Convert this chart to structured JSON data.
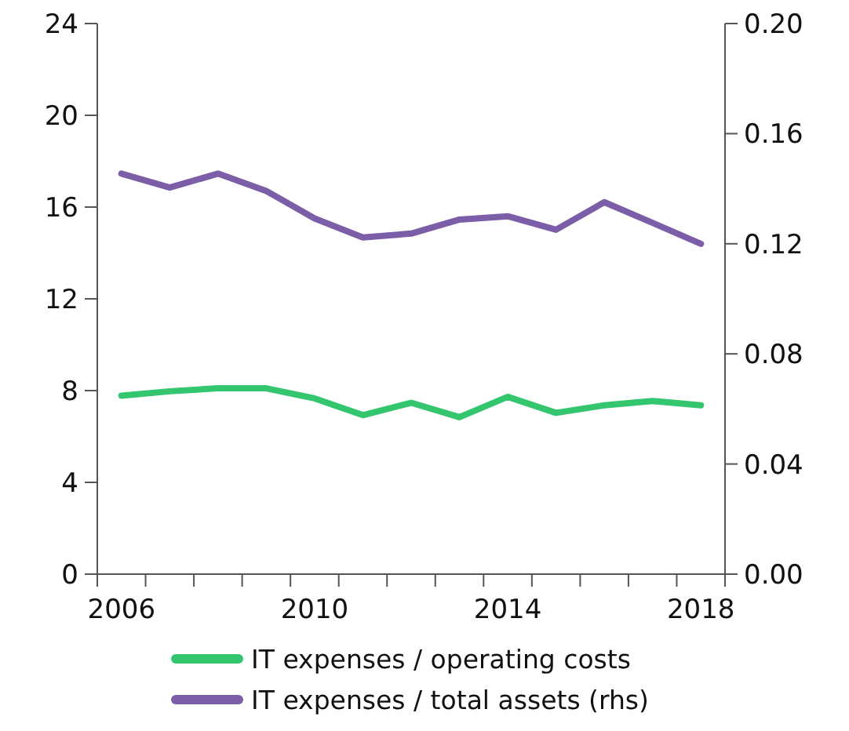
{
  "chart_data": {
    "type": "line",
    "categories": [
      "2006",
      null,
      null,
      null,
      "2010",
      null,
      null,
      null,
      "2014",
      null,
      null,
      null,
      "2018"
    ],
    "series": [
      {
        "name": "IT expenses / operating costs",
        "color": "#34c66e",
        "values": [
          7.78,
          7.97,
          8.1,
          8.1,
          7.66,
          6.93,
          7.47,
          6.84,
          7.73,
          7.03,
          7.36,
          7.55,
          7.36
        ]
      },
      {
        "name": "IT expenses / total assets (rhs)",
        "color": "#7b5ea7",
        "axis": "y2",
        "values": [
          0.1455,
          0.1404,
          0.1455,
          0.1392,
          0.1292,
          0.1223,
          0.1237,
          0.1288,
          0.13,
          0.1251,
          0.1351,
          0.1276,
          0.12
        ]
      }
    ],
    "ylim": [
      0,
      24
    ],
    "yticks": [
      0,
      4,
      8,
      12,
      16,
      20,
      24
    ],
    "y2lim": [
      0,
      0.2
    ],
    "y2ticks": [
      {
        "value": 0,
        "label": "0.00"
      },
      {
        "value": 0.04,
        "label": "0.04"
      },
      {
        "value": 0.08,
        "label": "0.08"
      },
      {
        "value": 0.12,
        "label": "0.12"
      },
      {
        "value": 0.16,
        "label": "0.16"
      },
      {
        "value": 0.2,
        "label": "0.20"
      }
    ],
    "grid": false,
    "legend": "bottom",
    "marker": "none",
    "line_style": "solid"
  }
}
